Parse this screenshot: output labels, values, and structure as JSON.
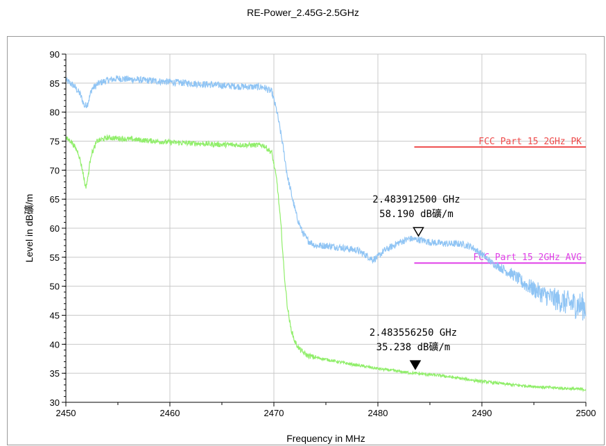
{
  "chart_data": {
    "type": "line",
    "title": "RE-Power_2.45G-2.5GHz",
    "xlabel": "Frequency in MHz",
    "ylabel": "Level in dB礦/m",
    "xlim": [
      2450,
      2500
    ],
    "ylim": [
      30,
      90
    ],
    "x_ticks": [
      "2450",
      "2460",
      "2470",
      "2480",
      "2490",
      "2500"
    ],
    "y_ticks": [
      "30",
      "35",
      "40",
      "45",
      "50",
      "55",
      "60",
      "65",
      "70",
      "75",
      "80",
      "85",
      "90"
    ],
    "grid": true,
    "series": [
      {
        "color": "#8fc4f4",
        "x": [
          2450,
          2450.8,
          2451.4,
          2451.8,
          2452.1,
          2452.5,
          2453.2,
          2454,
          2455,
          2460,
          2465,
          2467,
          2469,
          2469.8,
          2470.3,
          2470.8,
          2471.3,
          2471.8,
          2472.2,
          2472.7,
          2473.2,
          2474,
          2475,
          2476,
          2477,
          2478,
          2479,
          2479.5,
          2480,
          2480.5,
          2481,
          2482,
          2483,
          2484,
          2485,
          2486,
          2487,
          2488,
          2489,
          2490,
          2491,
          2492,
          2493,
          2494,
          2495,
          2496,
          2497,
          2498,
          2499,
          2500
        ],
        "values": [
          85.5,
          84.5,
          83,
          81,
          81.5,
          84,
          85,
          85.5,
          85.8,
          85.2,
          84.6,
          84.4,
          84.3,
          83.5,
          80,
          75,
          69,
          65,
          62,
          59.5,
          58,
          57,
          57,
          56.8,
          56.5,
          56.2,
          55.2,
          54.6,
          55,
          56,
          56.5,
          57.5,
          58.2,
          58,
          57.6,
          57.4,
          57.3,
          57.3,
          56.8,
          55.5,
          54,
          53,
          52,
          50.5,
          49.5,
          48.5,
          47.8,
          47.2,
          46.8,
          46.5
        ]
      },
      {
        "color": "#90ee6a",
        "x": [
          2450,
          2450.5,
          2451.2,
          2451.6,
          2451.9,
          2452.1,
          2452.4,
          2453,
          2454,
          2455,
          2460,
          2465,
          2469,
          2469.8,
          2470.3,
          2470.7,
          2471,
          2471.3,
          2471.6,
          2472,
          2472.4,
          2472.8,
          2473.2,
          2473.8,
          2475,
          2477,
          2480,
          2483,
          2486,
          2490,
          2493,
          2496,
          2498,
          2500
        ],
        "values": [
          75.5,
          75,
          73,
          70,
          67,
          68.5,
          72.5,
          75,
          75.6,
          75.5,
          74.8,
          74.4,
          74.3,
          73,
          68,
          60,
          52,
          46.5,
          43,
          40.5,
          39.3,
          38.6,
          38.1,
          37.8,
          37.4,
          36.7,
          35.8,
          35.1,
          34.6,
          33.6,
          33,
          32.6,
          32.4,
          32.2
        ]
      }
    ],
    "limit_lines": [
      {
        "label": "FCC Part 15 2GHz PK",
        "value": 74,
        "x_start": 2483.5,
        "x_end": 2500,
        "color": "#ee4b4b"
      },
      {
        "label": "FCC Part 15 2GHz AVG",
        "value": 54,
        "x_start": 2483.5,
        "x_end": 2500,
        "color": "#e040e8"
      }
    ],
    "markers": [
      {
        "freq_text": "2.483912500 GHz",
        "level_text": "58.190 dB礦/m",
        "x": 2483.9,
        "y": 58.19,
        "filled": false
      },
      {
        "freq_text": "2.483556250 GHz",
        "level_text": "35.238 dB礦/m",
        "x": 2483.6,
        "y": 35.24,
        "filled": true
      }
    ]
  }
}
